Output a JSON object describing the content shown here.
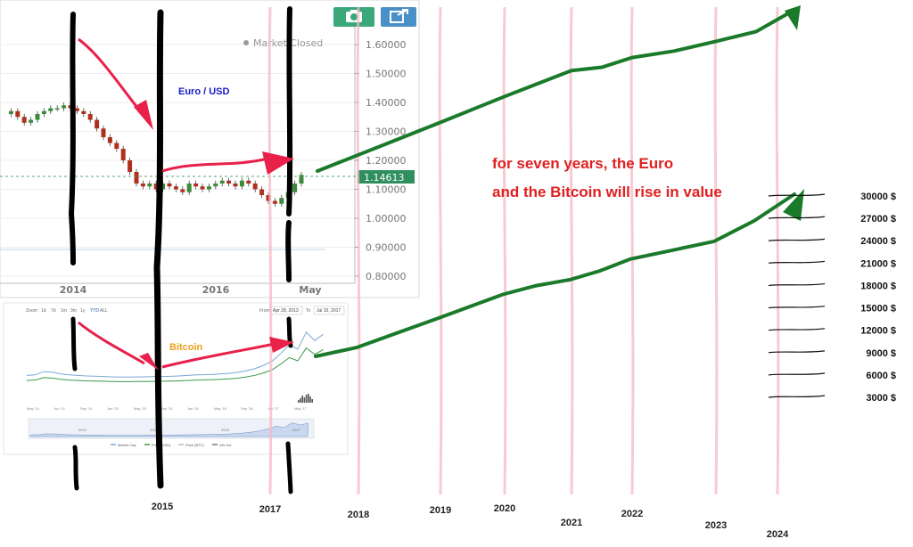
{
  "toolbar": {
    "camera_button_color": "#3aa87a",
    "share_button_color": "#4a90c8",
    "icons": [
      "camera-icon",
      "share-icon"
    ]
  },
  "eurusd_chart": {
    "title": "Euro / USD",
    "status_text": "Market Closed",
    "current_price_label": "1.14613",
    "y_ticks": [
      "1.60000",
      "1.50000",
      "1.40000",
      "1.30000",
      "1.20000",
      "1.10000",
      "1.00000",
      "0.90000",
      "0.80000"
    ],
    "x_ticks": [
      "2014",
      "2016",
      "May"
    ],
    "colors": {
      "up": "#3a8a3a",
      "down": "#b03020",
      "price_tag": "#2f8f5f"
    }
  },
  "bitcoin_chart": {
    "title": "Bitcoin",
    "zoom_label": "Zoom",
    "zoom_options": [
      "1d",
      "7d",
      "1m",
      "3m",
      "1y",
      "YTD",
      "ALL"
    ],
    "from_label": "From",
    "from_value": "Apr 28, 2013",
    "to_label": "To",
    "to_value": "Jul 10, 2017",
    "legend": [
      "Market Cap",
      "Price (USD)",
      "Price (BTC)",
      "24h Vol"
    ],
    "x_ticks": [
      "May '14",
      "Jun '14",
      "Sep '14",
      "Jan '15",
      "May '15",
      "Sep '15",
      "Jan '16",
      "May '16",
      "Sep '16",
      "Jan '17",
      "May '17"
    ],
    "nav_ticks": [
      "2014",
      "2015",
      "2016",
      "2017"
    ]
  },
  "annotation": {
    "line1": "for seven years, the Euro",
    "line2": "and the Bitcoin will rise in value",
    "color": "#e02020"
  },
  "chart_data": [
    {
      "type": "line",
      "title": "",
      "xlabel": "Year",
      "ylabel": "",
      "series": [
        {
          "x": [
            2017.6,
            2018,
            2018.5,
            2019,
            2019.5,
            2020,
            2020.5,
            2021,
            2021.5,
            2022,
            2022.5,
            2023,
            2023.5,
            2024
          ],
          "values": [
            1.15,
            1.2,
            1.25,
            1.3,
            1.34,
            1.38,
            1.42,
            1.46,
            1.47,
            1.5,
            1.52,
            1.55,
            1.58,
            1.65
          ]
        }
      ]
    },
    {
      "type": "line",
      "title": "",
      "xlabel": "Year",
      "ylabel": "",
      "ylim": [
        0,
        33000
      ],
      "price_levels": [
        {
          "label": "3000 $",
          "value": 3000
        },
        {
          "label": "6000 $",
          "value": 6000
        },
        {
          "label": "9000 $",
          "value": 9000
        },
        {
          "label": "12000 $",
          "value": 12000
        },
        {
          "label": "15000 $",
          "value": 15000
        },
        {
          "label": "18000 $",
          "value": 18000
        },
        {
          "label": "21000 $",
          "value": 21000
        },
        {
          "label": "24000 $",
          "value": 24000
        },
        {
          "label": "27000 $",
          "value": 27000
        },
        {
          "label": "30000 $",
          "value": 30000
        }
      ],
      "series": [
        {
          "x": [
            2017.6,
            2018,
            2018.5,
            2019,
            2019.5,
            2020,
            2020.5,
            2021,
            2021.5,
            2022,
            2022.5,
            2023,
            2023.5,
            2024
          ],
          "values": [
            2500,
            4000,
            6500,
            9000,
            11000,
            13000,
            14500,
            15500,
            17000,
            19000,
            20500,
            22000,
            25500,
            30000
          ]
        }
      ]
    }
  ],
  "year_labels": [
    "2015",
    "2017",
    "2018",
    "2019",
    "2020",
    "2021",
    "2022",
    "2023",
    "2024"
  ]
}
